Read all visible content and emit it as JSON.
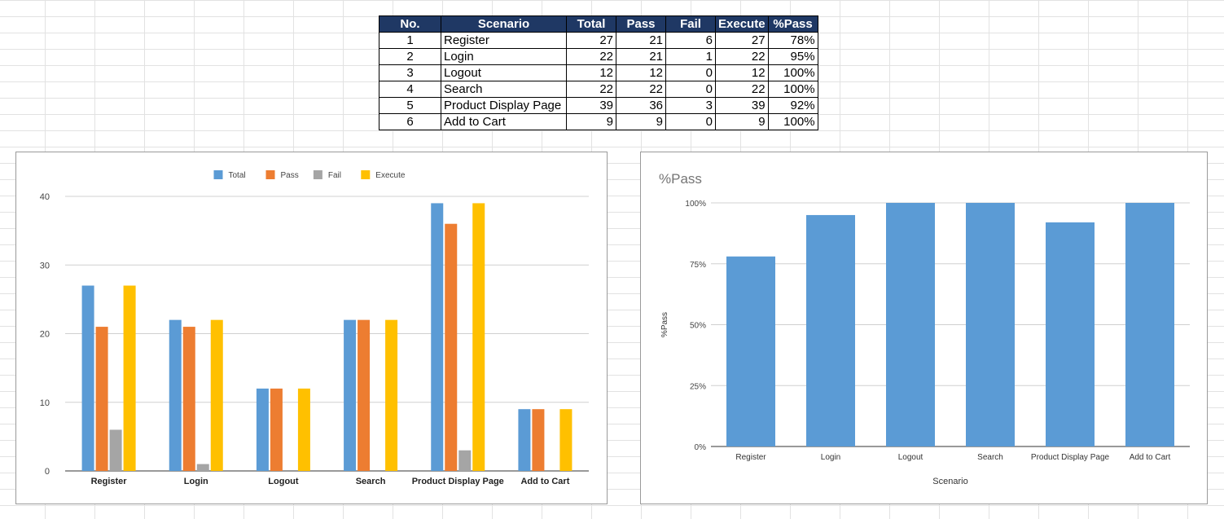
{
  "table": {
    "headers": [
      "No.",
      "Scenario",
      "Total",
      "Pass",
      "Fail",
      "Execute",
      "%Pass"
    ],
    "rows": [
      [
        "1",
        "Register",
        "27",
        "21",
        "6",
        "27",
        "78%"
      ],
      [
        "2",
        "Login",
        "22",
        "21",
        "1",
        "22",
        "95%"
      ],
      [
        "3",
        "Logout",
        "12",
        "12",
        "0",
        "12",
        "100%"
      ],
      [
        "4",
        "Search",
        "22",
        "22",
        "0",
        "22",
        "100%"
      ],
      [
        "5",
        "Product Display Page",
        "39",
        "36",
        "3",
        "39",
        "92%"
      ],
      [
        "6",
        "Add to Cart",
        "9",
        "9",
        "0",
        "9",
        "100%"
      ]
    ]
  },
  "chart_data": [
    {
      "type": "bar",
      "title": "",
      "xlabel": "",
      "ylabel": "",
      "categories": [
        "Register",
        "Login",
        "Logout",
        "Search",
        "Product Display Page",
        "Add to Cart"
      ],
      "series": [
        {
          "name": "Total",
          "color": "#5b9bd5",
          "values": [
            27,
            22,
            12,
            22,
            39,
            9
          ]
        },
        {
          "name": "Pass",
          "color": "#ed7d31",
          "values": [
            21,
            21,
            12,
            22,
            36,
            9
          ]
        },
        {
          "name": "Fail",
          "color": "#a5a5a5",
          "values": [
            6,
            1,
            0,
            0,
            3,
            0
          ]
        },
        {
          "name": "Execute",
          "color": "#ffc000",
          "values": [
            27,
            22,
            12,
            22,
            39,
            9
          ]
        }
      ],
      "ylim": [
        0,
        40
      ],
      "yticks": [
        0,
        10,
        20,
        30,
        40
      ],
      "grid": true,
      "legend": "top-center"
    },
    {
      "type": "bar",
      "title": "%Pass",
      "xlabel": "Scenario",
      "ylabel": "%Pass",
      "categories": [
        "Register",
        "Login",
        "Logout",
        "Search",
        "Product Display Page",
        "Add to Cart"
      ],
      "series": [
        {
          "name": "%Pass",
          "color": "#5b9bd5",
          "values": [
            78,
            95,
            100,
            100,
            92,
            100
          ]
        }
      ],
      "ylim": [
        0,
        100
      ],
      "yticks": [
        "0%",
        "25%",
        "50%",
        "75%",
        "100%"
      ],
      "grid": true,
      "legend": "none"
    }
  ]
}
